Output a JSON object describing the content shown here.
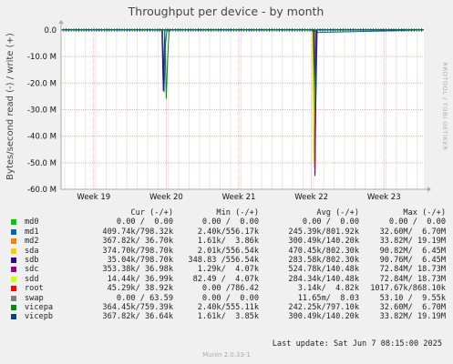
{
  "chart_data": {
    "type": "line",
    "title": "Throughput per device - by month",
    "ylabel": "Bytes/second read (-) / write (+)",
    "y_ticks": [
      {
        "value": 0,
        "label": "0.0"
      },
      {
        "value": -10,
        "label": "-10.0 M"
      },
      {
        "value": -20,
        "label": "-20.0 M"
      },
      {
        "value": -30,
        "label": "-30.0 M"
      },
      {
        "value": -40,
        "label": "-40.0 M"
      },
      {
        "value": -50,
        "label": "-50.0 M"
      },
      {
        "value": -60,
        "label": "-60.0 M"
      }
    ],
    "ylim": [
      -60,
      1
    ],
    "xlim": [
      18.55,
      23.55
    ],
    "x_ticks": [
      {
        "value": 19,
        "label": "Week 19"
      },
      {
        "value": 20,
        "label": "Week 20"
      },
      {
        "value": 21,
        "label": "Week 21"
      },
      {
        "value": 22,
        "label": "Week 22"
      },
      {
        "value": 23,
        "label": "Week 23"
      }
    ],
    "grid": true,
    "series": [
      {
        "name": "md0",
        "color": "#00cc00",
        "x": [
          18.55,
          23.55
        ],
        "y": [
          0,
          0
        ]
      },
      {
        "name": "md1",
        "color": "#0066b3",
        "x": [
          18.55,
          19.95,
          19.97,
          19.99,
          20.01,
          22.0,
          22.05,
          23.55
        ],
        "y": [
          0,
          0,
          -23.5,
          -5,
          0,
          0,
          -1,
          0
        ]
      },
      {
        "name": "md2",
        "color": "#ff8000",
        "x": [
          18.55,
          22.03,
          22.05,
          22.07,
          23.55
        ],
        "y": [
          0,
          0,
          -54,
          0,
          0
        ]
      },
      {
        "name": "sda",
        "color": "#ffcc00",
        "x": [
          18.55,
          22.02,
          22.04,
          22.06,
          23.55
        ],
        "y": [
          0,
          0,
          -52,
          0,
          0
        ]
      },
      {
        "name": "sdb",
        "color": "#330099",
        "x": [
          18.55,
          19.94,
          19.96,
          19.98,
          22.03,
          22.05,
          22.07,
          23.55
        ],
        "y": [
          0,
          0,
          -23,
          0,
          0,
          -55,
          0,
          0
        ]
      },
      {
        "name": "sdc",
        "color": "#990099",
        "x": [
          18.55,
          22.04,
          22.05,
          22.06,
          23.55
        ],
        "y": [
          0,
          0,
          -53,
          0,
          0
        ]
      },
      {
        "name": "sdd",
        "color": "#ccff00",
        "x": [
          18.55,
          22.01,
          22.03,
          22.05,
          23.55
        ],
        "y": [
          0,
          0,
          -50,
          0,
          0
        ]
      },
      {
        "name": "root",
        "color": "#ff0000",
        "x": [
          18.55,
          23.55
        ],
        "y": [
          0,
          0
        ]
      },
      {
        "name": "swap",
        "color": "#808080",
        "x": [
          18.55,
          23.55
        ],
        "y": [
          0,
          0
        ]
      },
      {
        "name": "vicepa",
        "color": "#008f00",
        "x": [
          18.55,
          19.98,
          20.0,
          20.02,
          20.04,
          23.55
        ],
        "y": [
          0,
          0,
          -26,
          -10,
          0,
          0
        ]
      },
      {
        "name": "vicepb",
        "color": "#00487d",
        "x": [
          18.55,
          22.04,
          22.06,
          22.08,
          23.55
        ],
        "y": [
          0,
          0,
          -30,
          0,
          0
        ]
      }
    ],
    "legend_headers": {
      "cur": "Cur (-/+)",
      "min": "Min (-/+)",
      "avg": "Avg (-/+)",
      "max": "Max (-/+)"
    },
    "legend_rows": [
      {
        "name": "md0",
        "color": "#00cc00",
        "cur": "0.00 /  0.00",
        "min": "0.00 /  0.00",
        "avg": "0.00 /  0.00",
        "max": "0.00 /  0.00"
      },
      {
        "name": "md1",
        "color": "#0066b3",
        "cur": "409.74k/798.32k",
        "min": "2.40k/556.17k",
        "avg": "245.39k/801.92k",
        "max": "32.60M/  6.70M"
      },
      {
        "name": "md2",
        "color": "#ff8000",
        "cur": "367.82k/ 36.70k",
        "min": "1.61k/  3.86k",
        "avg": "300.49k/140.20k",
        "max": "33.82M/ 19.19M"
      },
      {
        "name": "sda",
        "color": "#ffcc00",
        "cur": "374.70k/798.70k",
        "min": "2.01k/556.54k",
        "avg": "470.45k/802.30k",
        "max": "90.82M/  6.45M"
      },
      {
        "name": "sdb",
        "color": "#330099",
        "cur": "35.04k/798.70k",
        "min": "348.83 /556.54k",
        "avg": "283.58k/802.30k",
        "max": "90.76M/  6.45M"
      },
      {
        "name": "sdc",
        "color": "#990099",
        "cur": "353.38k/ 36.98k",
        "min": "1.29k/  4.07k",
        "avg": "524.78k/140.48k",
        "max": "72.84M/ 18.73M"
      },
      {
        "name": "sdd",
        "color": "#ccff00",
        "cur": "14.44k/ 36.99k",
        "min": "82.49 /  4.07k",
        "avg": "284.34k/140.48k",
        "max": "72.84M/ 18.73M"
      },
      {
        "name": "root",
        "color": "#ff0000",
        "cur": "45.29k/ 38.92k",
        "min": "0.00 /786.42",
        "avg": "3.14k/  4.82k",
        "max": "1017.67k/868.10k"
      },
      {
        "name": "swap",
        "color": "#808080",
        "cur": "0.00 / 63.59",
        "min": "0.00 /  0.00",
        "avg": "11.65m/  8.03",
        "max": "53.10 /  9.55k"
      },
      {
        "name": "vicepa",
        "color": "#008f00",
        "cur": "364.45k/759.39k",
        "min": "2.40k/555.11k",
        "avg": "242.25k/797.10k",
        "max": "32.60M/  6.70M"
      },
      {
        "name": "vicepb",
        "color": "#00487d",
        "cur": "367.82k/ 36.64k",
        "min": "1.61k/  3.85k",
        "avg": "300.49k/140.20k",
        "max": "33.82M/ 19.19M"
      }
    ]
  },
  "footer": {
    "last_update": "Last update:  Sat Jun  7 08:15:00 2025",
    "munin_version": "Munin 2.0.33-1"
  },
  "watermark": "RRDTOOL / TOBI OETIKER",
  "colors": {
    "background": "#f0f0f0",
    "plot_bg": "#ffffff",
    "grid": "#ffaaaa",
    "axis": "#aaaaaa"
  }
}
